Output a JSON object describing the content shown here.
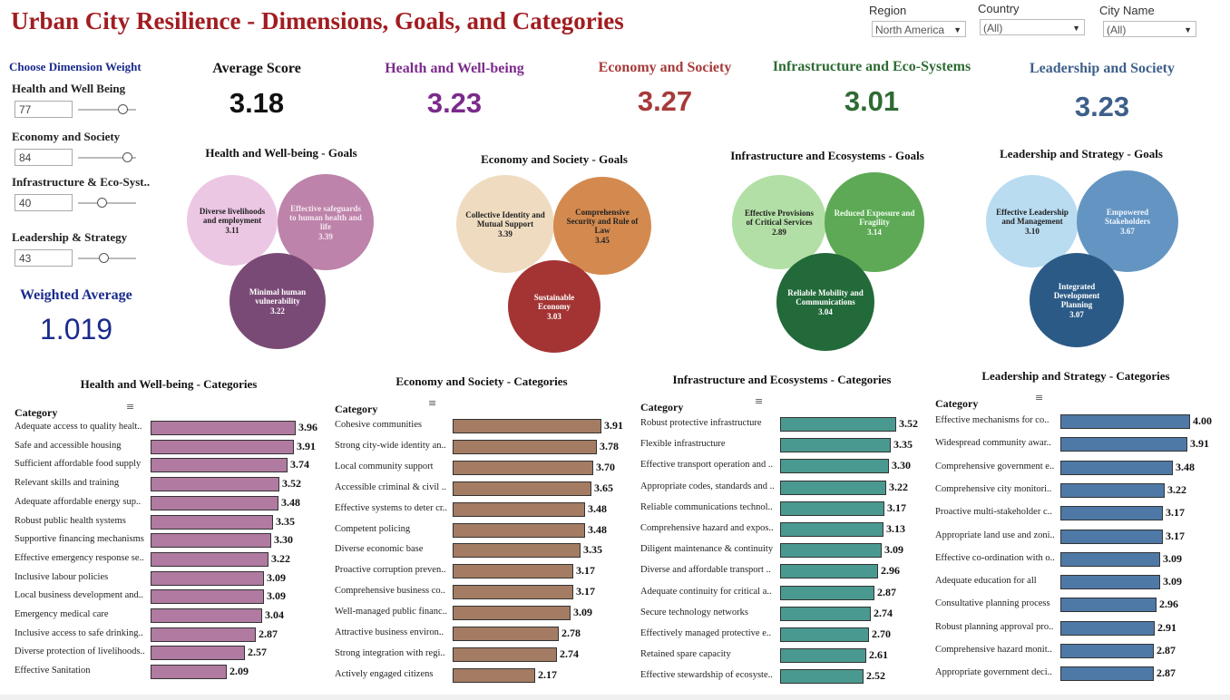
{
  "title": "Urban City Resilience - Dimensions, Goals, and Categories",
  "filters": [
    {
      "label": "Region",
      "value": "North America"
    },
    {
      "label": "Country",
      "value": "(All)"
    },
    {
      "label": "City Name",
      "value": "(All)"
    }
  ],
  "dimension_weight": {
    "heading": "Choose Dimension Weight",
    "sliders": [
      {
        "label": "Health and Well Being",
        "value": "77",
        "level": 0.77
      },
      {
        "label": "Economy and Society",
        "value": "84",
        "level": 0.84
      },
      {
        "label": "Infrastructure & Eco-Syst..",
        "value": "40",
        "level": 0.4
      },
      {
        "label": "Leadership & Strategy",
        "value": "43",
        "level": 0.43
      }
    ],
    "weighted_label": "Weighted Average",
    "weighted_value": "1.019"
  },
  "kpis": [
    {
      "label": "Average Score",
      "value": "3.18",
      "color": "#111111"
    },
    {
      "label": "Health and Well-being",
      "value": "3.23",
      "color": "#7b2a8c"
    },
    {
      "label": "Economy and Society",
      "value": "3.27",
      "color": "#a73a3a"
    },
    {
      "label": "Infrastructure and Eco-Systems",
      "value": "3.01",
      "color": "#2e6b34"
    },
    {
      "label": "Leadership and Society",
      "value": "3.23",
      "color": "#3d5f8a"
    }
  ],
  "goals": [
    {
      "title": "Health and Well-being - Goals",
      "bubbles": [
        {
          "label": "Diverse livelihoods and employment",
          "value": "3.11",
          "color": "#ecc7e4",
          "text": "#222222"
        },
        {
          "label": "Effective safeguards to human health and life",
          "value": "3.39",
          "color": "#bd83aa",
          "text": "#f5e8f0"
        },
        {
          "label": "Minimal human vulnerability",
          "value": "3.22",
          "color": "#7a4a76",
          "text": "#ffffff"
        }
      ]
    },
    {
      "title": "Economy and Society - Goals",
      "bubbles": [
        {
          "label": "Collective Identity and Mutual Support",
          "value": "3.39",
          "color": "#efdcc0",
          "text": "#222222"
        },
        {
          "label": "Comprehensive Security and Rule of Law",
          "value": "3.45",
          "color": "#d48a4f",
          "text": "#222222"
        },
        {
          "label": "Sustainable Economy",
          "value": "3.03",
          "color": "#a33433",
          "text": "#ffffff"
        }
      ]
    },
    {
      "title": "Infrastructure and Ecosystems - Goals",
      "bubbles": [
        {
          "label": "Effective Provisions of Critical Services",
          "value": "2.89",
          "color": "#b2dfa6",
          "text": "#222222"
        },
        {
          "label": "Reduced Exposure and Fragility",
          "value": "3.14",
          "color": "#5ea956",
          "text": "#f0fff0"
        },
        {
          "label": "Reliable Mobility and Communications",
          "value": "3.04",
          "color": "#226a39",
          "text": "#ffffff"
        }
      ]
    },
    {
      "title": "Leadership and Strategy - Goals",
      "bubbles": [
        {
          "label": "Effective Leadership and Management",
          "value": "3.10",
          "color": "#b9dcf1",
          "text": "#222222"
        },
        {
          "label": "Empowered Stakeholders",
          "value": "3.67",
          "color": "#6495c2",
          "text": "#f0f6ff"
        },
        {
          "label": "Integrated Development Planning",
          "value": "3.07",
          "color": "#2b5a86",
          "text": "#ffffff"
        }
      ]
    }
  ],
  "categories": [
    {
      "title": "Health and Well-being - Categories",
      "header": "Category",
      "color": "#b07aa1",
      "rows": [
        {
          "label": "Adequate access to quality healt..",
          "value": 3.96,
          "display": "3.96"
        },
        {
          "label": "Safe and accessible housing",
          "value": 3.91,
          "display": "3.91"
        },
        {
          "label": "Sufficient affordable food supply",
          "value": 3.74,
          "display": "3.74"
        },
        {
          "label": "Relevant skills and training",
          "value": 3.52,
          "display": "3.52"
        },
        {
          "label": "Adequate affordable energy sup..",
          "value": 3.48,
          "display": "3.48"
        },
        {
          "label": "Robust public health systems",
          "value": 3.35,
          "display": "3.35"
        },
        {
          "label": "Supportive financing mechanisms",
          "value": 3.3,
          "display": "3.30"
        },
        {
          "label": "Effective emergency response se..",
          "value": 3.22,
          "display": "3.22"
        },
        {
          "label": "Inclusive labour policies",
          "value": 3.09,
          "display": "3.09"
        },
        {
          "label": "Local business development and..",
          "value": 3.09,
          "display": "3.09"
        },
        {
          "label": "Emergency medical care",
          "value": 3.04,
          "display": "3.04"
        },
        {
          "label": "Inclusive access to safe drinking..",
          "value": 2.87,
          "display": "2.87"
        },
        {
          "label": "Diverse protection of livelihoods..",
          "value": 2.57,
          "display": "2.57"
        },
        {
          "label": "Effective Sanitation",
          "value": 2.09,
          "display": "2.09"
        }
      ]
    },
    {
      "title": "Economy and Society - Categories",
      "header": "Category",
      "color": "#a47c63",
      "rows": [
        {
          "label": "Cohesive communities",
          "value": 3.91,
          "display": "3.91"
        },
        {
          "label": "Strong city-wide identity an..",
          "value": 3.78,
          "display": "3.78"
        },
        {
          "label": "Local community support",
          "value": 3.7,
          "display": "3.70"
        },
        {
          "label": "Accessible criminal & civil ..",
          "value": 3.65,
          "display": "3.65"
        },
        {
          "label": "Effective systems to deter cr..",
          "value": 3.48,
          "display": "3.48"
        },
        {
          "label": "Competent policing",
          "value": 3.48,
          "display": "3.48"
        },
        {
          "label": "Diverse economic base",
          "value": 3.35,
          "display": "3.35"
        },
        {
          "label": "Proactive corruption preven..",
          "value": 3.17,
          "display": "3.17"
        },
        {
          "label": "Comprehensive business co..",
          "value": 3.17,
          "display": "3.17"
        },
        {
          "label": "Well-managed public financ..",
          "value": 3.09,
          "display": "3.09"
        },
        {
          "label": "Attractive business environ..",
          "value": 2.78,
          "display": "2.78"
        },
        {
          "label": "Strong integration with regi..",
          "value": 2.74,
          "display": "2.74"
        },
        {
          "label": "Actively engaged citizens",
          "value": 2.17,
          "display": "2.17"
        }
      ]
    },
    {
      "title": "Infrastructure and Ecosystems - Categories",
      "header": "Category",
      "color": "#4a9990",
      "rows": [
        {
          "label": "Robust protective infrastructure",
          "value": 3.52,
          "display": "3.52"
        },
        {
          "label": "Flexible infrastructure",
          "value": 3.35,
          "display": "3.35"
        },
        {
          "label": "Effective transport operation and ..",
          "value": 3.3,
          "display": "3.30"
        },
        {
          "label": "Appropriate codes, standards and ..",
          "value": 3.22,
          "display": "3.22"
        },
        {
          "label": "Reliable communications technol..",
          "value": 3.17,
          "display": "3.17"
        },
        {
          "label": "Comprehensive hazard and expos..",
          "value": 3.13,
          "display": "3.13"
        },
        {
          "label": "Diligent maintenance & continuity",
          "value": 3.09,
          "display": "3.09"
        },
        {
          "label": "Diverse and affordable transport ..",
          "value": 2.96,
          "display": "2.96"
        },
        {
          "label": "Adequate continuity for critical a..",
          "value": 2.87,
          "display": "2.87"
        },
        {
          "label": "Secure technology networks",
          "value": 2.74,
          "display": "2.74"
        },
        {
          "label": "Effectively managed protective e..",
          "value": 2.7,
          "display": "2.70"
        },
        {
          "label": "Retained spare capacity",
          "value": 2.61,
          "display": "2.61"
        },
        {
          "label": "Effective stewardship of ecosyste..",
          "value": 2.52,
          "display": "2.52"
        }
      ]
    },
    {
      "title": "Leadership and Strategy - Categories",
      "header": "Category",
      "color": "#4e79a7",
      "rows": [
        {
          "label": "Effective mechanisms for co..",
          "value": 4.0,
          "display": "4.00"
        },
        {
          "label": "Widespread community awar..",
          "value": 3.91,
          "display": "3.91"
        },
        {
          "label": "Comprehensive government e..",
          "value": 3.48,
          "display": "3.48"
        },
        {
          "label": "Comprehensive city monitori..",
          "value": 3.22,
          "display": "3.22"
        },
        {
          "label": "Proactive multi-stakeholder c..",
          "value": 3.17,
          "display": "3.17"
        },
        {
          "label": "Appropriate land use and zoni..",
          "value": 3.17,
          "display": "3.17"
        },
        {
          "label": "Effective co-ordination with o..",
          "value": 3.09,
          "display": "3.09"
        },
        {
          "label": "Adequate education for all",
          "value": 3.09,
          "display": "3.09"
        },
        {
          "label": "Consultative planning process",
          "value": 2.96,
          "display": "2.96"
        },
        {
          "label": "Robust planning approval pro..",
          "value": 2.91,
          "display": "2.91"
        },
        {
          "label": "Comprehensive hazard monit..",
          "value": 2.87,
          "display": "2.87"
        },
        {
          "label": "Appropriate government deci..",
          "value": 2.87,
          "display": "2.87"
        }
      ]
    }
  ]
}
